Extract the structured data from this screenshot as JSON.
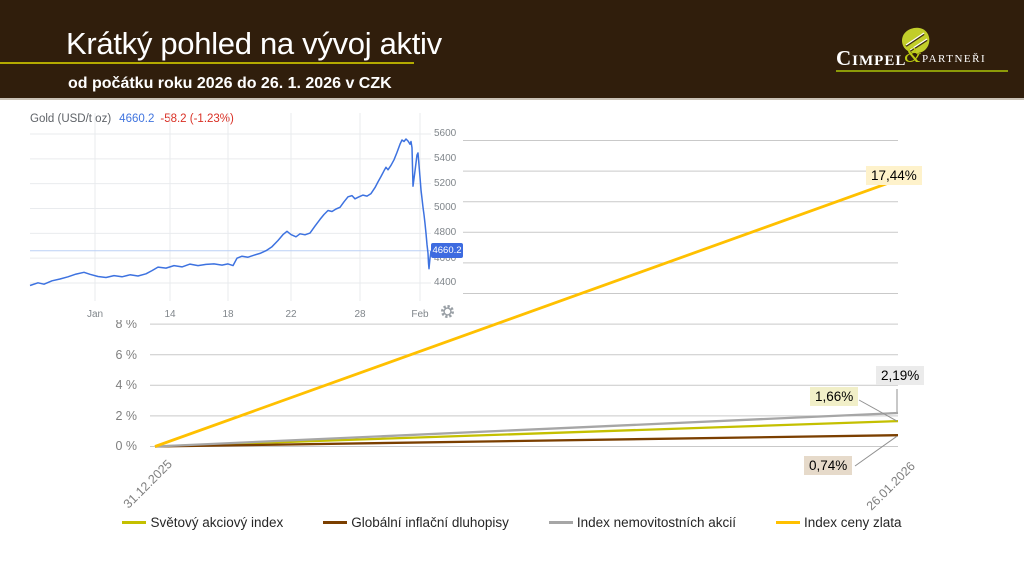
{
  "header": {
    "title": "Krátký pohled na vývoj aktiv",
    "subtitle": "od počátku roku 2026 do 26. 1. 2026 v CZK",
    "logo": {
      "name": "Cimpel",
      "amp": "&",
      "partners": "PARTNEŘI"
    }
  },
  "main_chart": {
    "y_ticks": [
      "0 %",
      "2 %",
      "4 %",
      "6 %",
      "8 %"
    ],
    "x_labels": [
      "31.12.2025",
      "26.01.2026"
    ],
    "data_labels": {
      "gold": "17,44%",
      "real_estate": "2,19%",
      "equity": "1,66%",
      "bonds": "0,74%"
    }
  },
  "legend": [
    {
      "label": "Světový akciový index",
      "color": "#C4C000"
    },
    {
      "label": "Globální inflační dluhopisy",
      "color": "#7B3F00"
    },
    {
      "label": "Index nemovitostních akcií",
      "color": "#A6A6A6"
    },
    {
      "label": "Index ceny zlata",
      "color": "#FFC000"
    }
  ],
  "gold_widget": {
    "title": "Gold (USD/t oz)",
    "price": "4660.2",
    "change": "-58.2 (-1.23%)",
    "price_badge": "4660.2",
    "y_ticks": [
      "5600",
      "5400",
      "5200",
      "5000",
      "4800",
      "4600",
      "4400"
    ],
    "x_ticks": [
      "Jan",
      "14",
      "18",
      "22",
      "28",
      "Feb"
    ]
  },
  "colors": {
    "header_bg": "#301E0C",
    "accent_yellow": "#B3AA00",
    "logo_green": "#BCCB12",
    "gridline": "#C9C9C9",
    "axis_text": "#7F7F7F",
    "label_bg_gold": "#FEF2CB",
    "label_bg_gray": "#EBEBEB",
    "label_bg_green": "#F1EFC8",
    "label_bg_brown": "#E6DACA",
    "gw_line": "#3D72E0",
    "gw_price_line": "#BBD0F5",
    "gw_grid": "#E9EBEE"
  },
  "chart_data": [
    {
      "type": "line",
      "title": "Krátký pohled na vývoj aktiv (od počátku roku 2026 do 26. 1. 2026 v CZK)",
      "x": [
        "31.12.2025",
        "26.01.2026"
      ],
      "ylabel": "%",
      "ylim": [
        0,
        20
      ],
      "ytick_step": 2,
      "grid": true,
      "legend_position": "bottom",
      "series": [
        {
          "name": "Světový akciový index",
          "color": "#C4C000",
          "values": [
            0,
            1.66
          ],
          "end_label": "1,66%"
        },
        {
          "name": "Globální inflační dluhopisy",
          "color": "#7B3F00",
          "values": [
            0,
            0.74
          ],
          "end_label": "0,74%"
        },
        {
          "name": "Index nemovitostních akcií",
          "color": "#A6A6A6",
          "values": [
            0,
            2.19
          ],
          "end_label": "2,19%"
        },
        {
          "name": "Index ceny zlata",
          "color": "#FFC000",
          "values": [
            0,
            17.44
          ],
          "end_label": "17,44%"
        }
      ]
    },
    {
      "type": "line",
      "title": "Gold (USD/t oz)",
      "last_price": 4660.2,
      "change": -58.2,
      "change_pct": -1.23,
      "ylim": [
        4400,
        5600
      ],
      "y_ticks": [
        4400,
        4600,
        4800,
        5000,
        5200,
        5400,
        5600
      ],
      "x_ticks": [
        "Jan",
        "14",
        "18",
        "22",
        "28",
        "Feb"
      ],
      "points": [
        [
          2,
          4380
        ],
        [
          10,
          4402
        ],
        [
          16,
          4390
        ],
        [
          24,
          4418
        ],
        [
          32,
          4432
        ],
        [
          40,
          4450
        ],
        [
          48,
          4472
        ],
        [
          56,
          4486
        ],
        [
          62,
          4470
        ],
        [
          70,
          4452
        ],
        [
          78,
          4444
        ],
        [
          86,
          4460
        ],
        [
          94,
          4450
        ],
        [
          102,
          4466
        ],
        [
          110,
          4456
        ],
        [
          118,
          4474
        ],
        [
          124,
          4500
        ],
        [
          130,
          4528
        ],
        [
          138,
          4520
        ],
        [
          146,
          4540
        ],
        [
          154,
          4530
        ],
        [
          162,
          4552
        ],
        [
          170,
          4540
        ],
        [
          178,
          4550
        ],
        [
          186,
          4554
        ],
        [
          194,
          4544
        ],
        [
          200,
          4554
        ],
        [
          205,
          4540
        ],
        [
          209,
          4600
        ],
        [
          214,
          4616
        ],
        [
          220,
          4608
        ],
        [
          226,
          4624
        ],
        [
          232,
          4638
        ],
        [
          238,
          4660
        ],
        [
          244,
          4692
        ],
        [
          250,
          4742
        ],
        [
          255,
          4790
        ],
        [
          259,
          4816
        ],
        [
          263,
          4790
        ],
        [
          268,
          4772
        ],
        [
          272,
          4796
        ],
        [
          277,
          4788
        ],
        [
          282,
          4802
        ],
        [
          287,
          4858
        ],
        [
          292,
          4912
        ],
        [
          296,
          4952
        ],
        [
          300,
          4984
        ],
        [
          304,
          4976
        ],
        [
          308,
          4996
        ],
        [
          312,
          5010
        ],
        [
          316,
          5054
        ],
        [
          320,
          5094
        ],
        [
          324,
          5104
        ],
        [
          327,
          5078
        ],
        [
          331,
          5094
        ],
        [
          335,
          5108
        ],
        [
          339,
          5100
        ],
        [
          343,
          5120
        ],
        [
          347,
          5168
        ],
        [
          350,
          5214
        ],
        [
          353,
          5258
        ],
        [
          356,
          5304
        ],
        [
          358,
          5332
        ],
        [
          360,
          5312
        ],
        [
          363,
          5348
        ],
        [
          366,
          5392
        ],
        [
          369,
          5452
        ],
        [
          372,
          5518
        ],
        [
          374,
          5552
        ],
        [
          376,
          5540
        ],
        [
          378,
          5560
        ],
        [
          380,
          5544
        ],
        [
          382,
          5518
        ],
        [
          383,
          5540
        ],
        [
          384,
          5490
        ],
        [
          385,
          5180
        ],
        [
          387,
          5302
        ],
        [
          389,
          5432
        ],
        [
          390,
          5448
        ],
        [
          391,
          5350
        ],
        [
          392,
          5252
        ],
        [
          393,
          5150
        ],
        [
          394,
          5080
        ],
        [
          395,
          5010
        ],
        [
          396,
          4950
        ],
        [
          397,
          4880
        ],
        [
          398,
          4800
        ],
        [
          399,
          4710
        ],
        [
          400,
          4640
        ],
        [
          400.5,
          4560
        ],
        [
          401,
          4515
        ],
        [
          402,
          4600
        ],
        [
          403,
          4658
        ]
      ]
    }
  ]
}
